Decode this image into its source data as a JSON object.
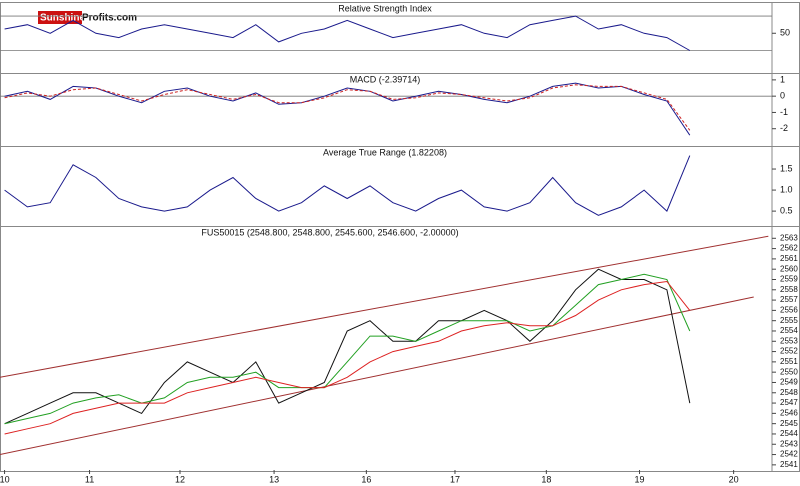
{
  "logo": {
    "brand": "Sunshine",
    "domain": "Profits.com"
  },
  "chart_data": [
    {
      "type": "line",
      "title": "Relative Strength Index",
      "x": [
        0,
        0.25,
        0.5,
        0.75,
        1,
        1.25,
        1.5,
        1.75,
        2,
        2.25,
        2.5,
        2.75,
        3,
        3.25,
        3.5,
        3.75,
        4,
        4.25,
        4.5,
        4.75,
        5,
        5.25,
        5.5,
        5.75,
        6,
        6.25,
        6.5,
        6.75,
        7,
        7.25,
        7.5
      ],
      "series": [
        {
          "color": "#1a1a8c",
          "values": [
            55,
            60,
            50,
            65,
            50,
            45,
            55,
            60,
            55,
            50,
            45,
            60,
            40,
            50,
            55,
            65,
            55,
            45,
            50,
            55,
            60,
            50,
            45,
            60,
            65,
            70,
            55,
            60,
            50,
            45,
            30
          ]
        }
      ],
      "reference_lines": [
        70,
        30
      ],
      "xlim": [
        -0.05,
        8.4
      ],
      "ylim": [
        5,
        84
      ],
      "yticks": [
        50
      ]
    },
    {
      "type": "line",
      "title": "MACD (-2.39714)",
      "x": [
        0,
        0.25,
        0.5,
        0.75,
        1,
        1.25,
        1.5,
        1.75,
        2,
        2.25,
        2.5,
        2.75,
        3,
        3.25,
        3.5,
        3.75,
        4,
        4.25,
        4.5,
        4.75,
        5,
        5.25,
        5.5,
        5.75,
        6,
        6.25,
        6.5,
        6.75,
        7,
        7.25,
        7.5
      ],
      "series": [
        {
          "color": "#1a1a8c",
          "values": [
            0,
            0.3,
            -0.2,
            0.6,
            0.5,
            0,
            -0.4,
            0.3,
            0.5,
            0,
            -0.3,
            0.2,
            -0.5,
            -0.4,
            0,
            0.5,
            0.3,
            -0.3,
            0,
            0.3,
            0.1,
            -0.2,
            -0.4,
            0,
            0.6,
            0.8,
            0.5,
            0.6,
            0.1,
            -0.3,
            -2.4
          ]
        },
        {
          "color": "#cc2222",
          "dashed": true,
          "values": [
            -0.1,
            0.2,
            0,
            0.4,
            0.5,
            0.1,
            -0.3,
            0.1,
            0.4,
            0.1,
            -0.2,
            0.1,
            -0.4,
            -0.4,
            -0.1,
            0.4,
            0.3,
            -0.2,
            -0.1,
            0.2,
            0.1,
            -0.1,
            -0.3,
            -0.1,
            0.5,
            0.7,
            0.6,
            0.6,
            0.2,
            -0.2,
            -2.1
          ]
        }
      ],
      "xlim": [
        -0.05,
        8.4
      ],
      "ylim": [
        -3,
        1.3
      ],
      "yticks": [
        -2,
        -1,
        0,
        1
      ]
    },
    {
      "type": "line",
      "title": "Average True Range (1.82208)",
      "x": [
        0,
        0.25,
        0.5,
        0.75,
        1,
        1.25,
        1.5,
        1.75,
        2,
        2.25,
        2.5,
        2.75,
        3,
        3.25,
        3.5,
        3.75,
        4,
        4.25,
        4.5,
        4.75,
        5,
        5.25,
        5.5,
        5.75,
        6,
        6.25,
        6.5,
        6.75,
        7,
        7.25,
        7.5
      ],
      "series": [
        {
          "color": "#1a1a8c",
          "values": [
            1.0,
            0.6,
            0.7,
            1.6,
            1.3,
            0.8,
            0.6,
            0.5,
            0.6,
            1.0,
            1.3,
            0.8,
            0.5,
            0.7,
            1.1,
            0.8,
            1.1,
            0.7,
            0.5,
            0.8,
            1.0,
            0.6,
            0.5,
            0.7,
            1.3,
            0.7,
            0.4,
            0.6,
            1.0,
            0.5,
            1.82
          ]
        }
      ],
      "xlim": [
        -0.05,
        8.4
      ],
      "ylim": [
        0.17,
        2.0
      ],
      "yticks": [
        0.5,
        {
          "value": 1,
          "label": "1.0"
        },
        1.5
      ]
    },
    {
      "type": "line",
      "title": "FUS50015 (2548.800, 2548.800, 2545.600, 2546.600, -2.00000)",
      "x": [
        0,
        0.25,
        0.5,
        0.75,
        1,
        1.25,
        1.5,
        1.75,
        2,
        2.25,
        2.5,
        2.75,
        3,
        3.25,
        3.5,
        3.75,
        4,
        4.25,
        4.5,
        4.75,
        5,
        5.25,
        5.5,
        5.75,
        6,
        6.25,
        6.5,
        6.75,
        7,
        7.25,
        7.5
      ],
      "series": [
        {
          "color": "#111111",
          "values": [
            2545,
            2546,
            2547,
            2548,
            2548,
            2547,
            2546,
            2549,
            2551,
            2550,
            2549,
            2551,
            2547,
            2548,
            2549,
            2554,
            2555,
            2553,
            2553,
            2555,
            2555,
            2556,
            2555,
            2553,
            2555,
            2558,
            2560,
            2559,
            2559,
            2558,
            2547
          ]
        },
        {
          "color": "#22a022",
          "values": [
            2545,
            2545.5,
            2546,
            2547,
            2547.5,
            2547.8,
            2547,
            2547.5,
            2549,
            2549.5,
            2549.5,
            2550,
            2548.5,
            2548.5,
            2548.5,
            2551,
            2553.5,
            2553.5,
            2553,
            2554,
            2555,
            2555,
            2555,
            2554,
            2554.5,
            2556.5,
            2558.5,
            2559,
            2559.5,
            2559,
            2554
          ]
        },
        {
          "color": "#dd2222",
          "values": [
            2544,
            2544.5,
            2545,
            2546,
            2546.5,
            2547,
            2547,
            2547,
            2548,
            2548.5,
            2549,
            2549.5,
            2549,
            2548.5,
            2548.5,
            2549.5,
            2551,
            2552,
            2552.5,
            2553,
            2554,
            2554.5,
            2554.8,
            2554.5,
            2554.5,
            2555.5,
            2557,
            2558,
            2558.5,
            2558.8,
            2556
          ]
        }
      ],
      "trendlines": [
        {
          "color": "#a03030",
          "x": [
            -0.05,
            8.36
          ],
          "y": [
            2549.5,
            2563.2
          ]
        },
        {
          "color": "#a03030",
          "x": [
            -0.05,
            8.2
          ],
          "y": [
            2542,
            2557.3
          ]
        }
      ],
      "xlim": [
        -0.05,
        8.4
      ],
      "ylim": [
        2540.5,
        2564
      ],
      "yticks": [
        2541,
        2542,
        2543,
        2544,
        2545,
        2546,
        2547,
        2548,
        2549,
        2550,
        2551,
        2552,
        2553,
        2554,
        2555,
        2556,
        2557,
        2558,
        2559,
        2560,
        2561,
        2562,
        2563
      ],
      "xticks": [
        {
          "value": 0,
          "label": "10"
        },
        {
          "value": 0.93,
          "label": "11"
        },
        {
          "value": 1.92,
          "label": "12"
        },
        {
          "value": 2.95,
          "label": "13"
        },
        {
          "value": 3.96,
          "label": "16"
        },
        {
          "value": 4.93,
          "label": "17"
        },
        {
          "value": 5.93,
          "label": "18"
        },
        {
          "value": 6.95,
          "label": "19"
        },
        {
          "value": 7.98,
          "label": "20"
        }
      ]
    }
  ]
}
